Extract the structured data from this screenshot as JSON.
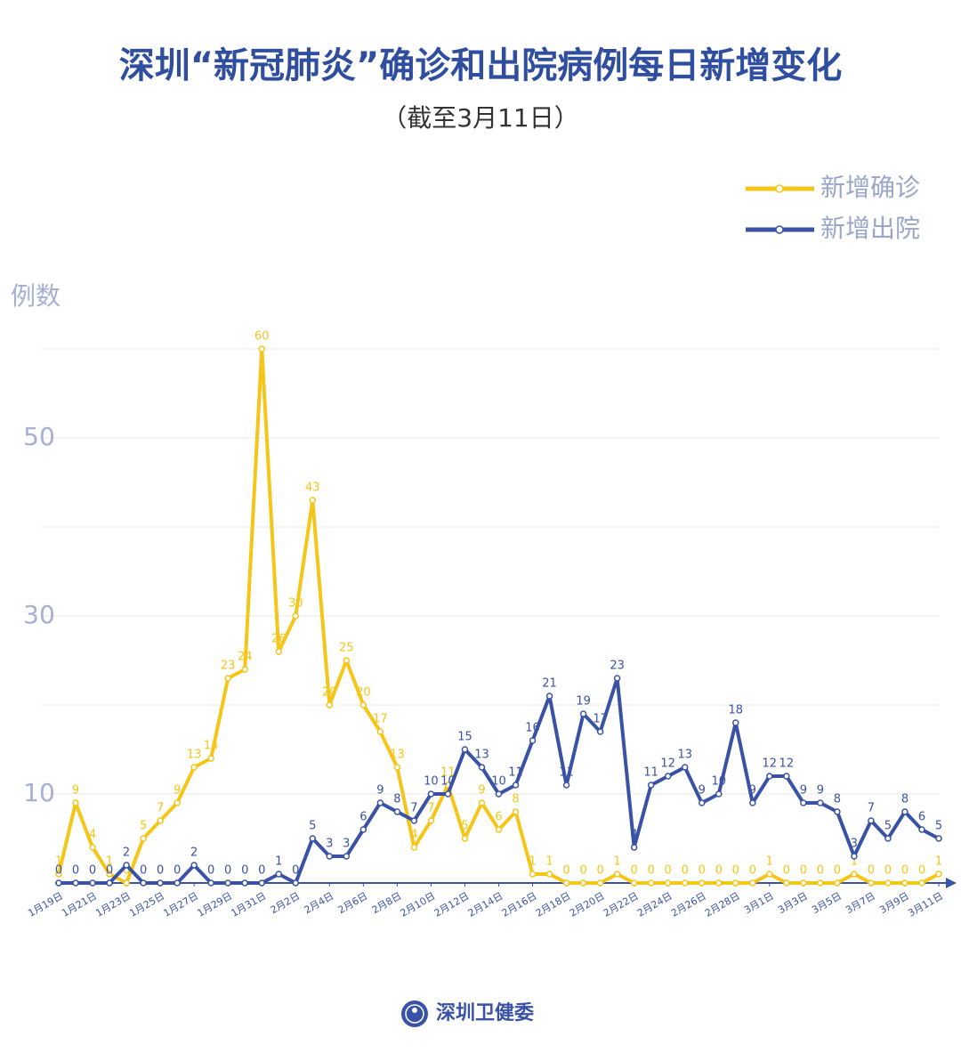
{
  "chart_data": {
    "type": "line",
    "title": "深圳“新冠肺炎”确诊和出院病例每日新增变化",
    "subtitle": "（截至3月11日）",
    "y_label": "例数",
    "source": "深圳卫健委",
    "categories": [
      "1月19日",
      null,
      "1月21日",
      null,
      "1月23日",
      null,
      "1月25日",
      null,
      "1月27日",
      null,
      "1月29日",
      null,
      "1月31日",
      null,
      "2月2日",
      null,
      "2月4日",
      null,
      "2月6日",
      null,
      "2月8日",
      null,
      "2月10日",
      null,
      "2月12日",
      null,
      "2月14日",
      null,
      "2月16日",
      null,
      "2月18日",
      null,
      "2月20日",
      null,
      "2月22日",
      null,
      "2月24日",
      null,
      "2月26日",
      null,
      "2月28日",
      null,
      "3月1日",
      null,
      "3月3日",
      null,
      "3月5日",
      null,
      "3月7日",
      null,
      "3月9日",
      null,
      "3月11日"
    ],
    "series": [
      {
        "name": "新增确诊",
        "color": "#f5c518",
        "values": [
          1,
          9,
          4,
          1,
          0,
          5,
          7,
          9,
          13,
          14,
          23,
          24,
          60,
          26,
          30,
          43,
          20,
          25,
          20,
          17,
          13,
          4,
          7,
          11,
          5,
          9,
          6,
          8,
          1,
          1,
          0,
          0,
          0,
          1,
          0,
          0,
          0,
          0,
          0,
          0,
          0,
          0,
          1,
          0,
          0,
          0,
          0,
          1,
          0,
          0,
          0,
          0,
          1
        ]
      },
      {
        "name": "新增出院",
        "color": "#3a52a6",
        "values": [
          0,
          0,
          0,
          0,
          2,
          0,
          0,
          0,
          2,
          0,
          0,
          0,
          0,
          1,
          0,
          5,
          3,
          3,
          6,
          9,
          8,
          7,
          10,
          10,
          15,
          13,
          10,
          11,
          16,
          21,
          11,
          19,
          17,
          23,
          4,
          11,
          12,
          13,
          9,
          10,
          18,
          9,
          12,
          12,
          9,
          9,
          8,
          3,
          7,
          5,
          8,
          6,
          5
        ]
      }
    ],
    "ylim": [
      0,
      60
    ],
    "yticks": [
      10,
      30,
      50
    ],
    "grid": true,
    "minor_grid": true,
    "legend": "top-right"
  }
}
